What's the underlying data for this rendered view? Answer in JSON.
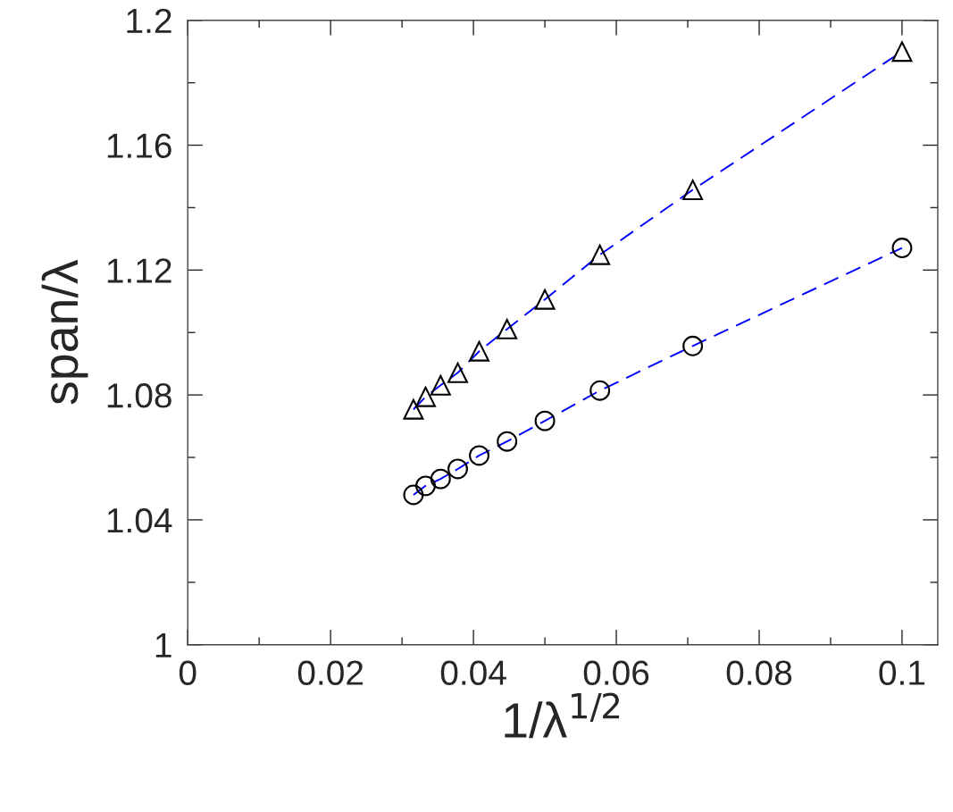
{
  "chart_data": {
    "type": "line",
    "xlabel": "1/λ$^{1/2}$",
    "ylabel": "span/λ",
    "x": [
      0.0316,
      0.0333,
      0.0354,
      0.0378,
      0.0408,
      0.0447,
      0.05,
      0.0577,
      0.0707,
      0.1
    ],
    "series": [
      {
        "color": "#0000ff",
        "marker": "triangle",
        "line_style": "dashed",
        "values": [
          1.0754,
          1.0794,
          1.0831,
          1.0871,
          1.094,
          1.1011,
          1.1106,
          1.1249,
          1.1457,
          1.19
        ]
      },
      {
        "color": "#0000ff",
        "marker": "circle",
        "line_style": "dashed",
        "values": [
          1.048,
          1.0509,
          1.0531,
          1.0563,
          1.0606,
          1.0651,
          1.0717,
          1.0814,
          1.0957,
          1.1271
        ]
      }
    ],
    "xlim": [
      0,
      0.105
    ],
    "xticks": [
      0,
      0.02,
      0.04,
      0.06,
      0.08,
      0.1
    ],
    "ylim": [
      1,
      1.2
    ],
    "yticks": [
      1,
      1.04,
      1.08,
      1.12,
      1.16,
      1.2
    ],
    "grid": false,
    "legend": false
  }
}
